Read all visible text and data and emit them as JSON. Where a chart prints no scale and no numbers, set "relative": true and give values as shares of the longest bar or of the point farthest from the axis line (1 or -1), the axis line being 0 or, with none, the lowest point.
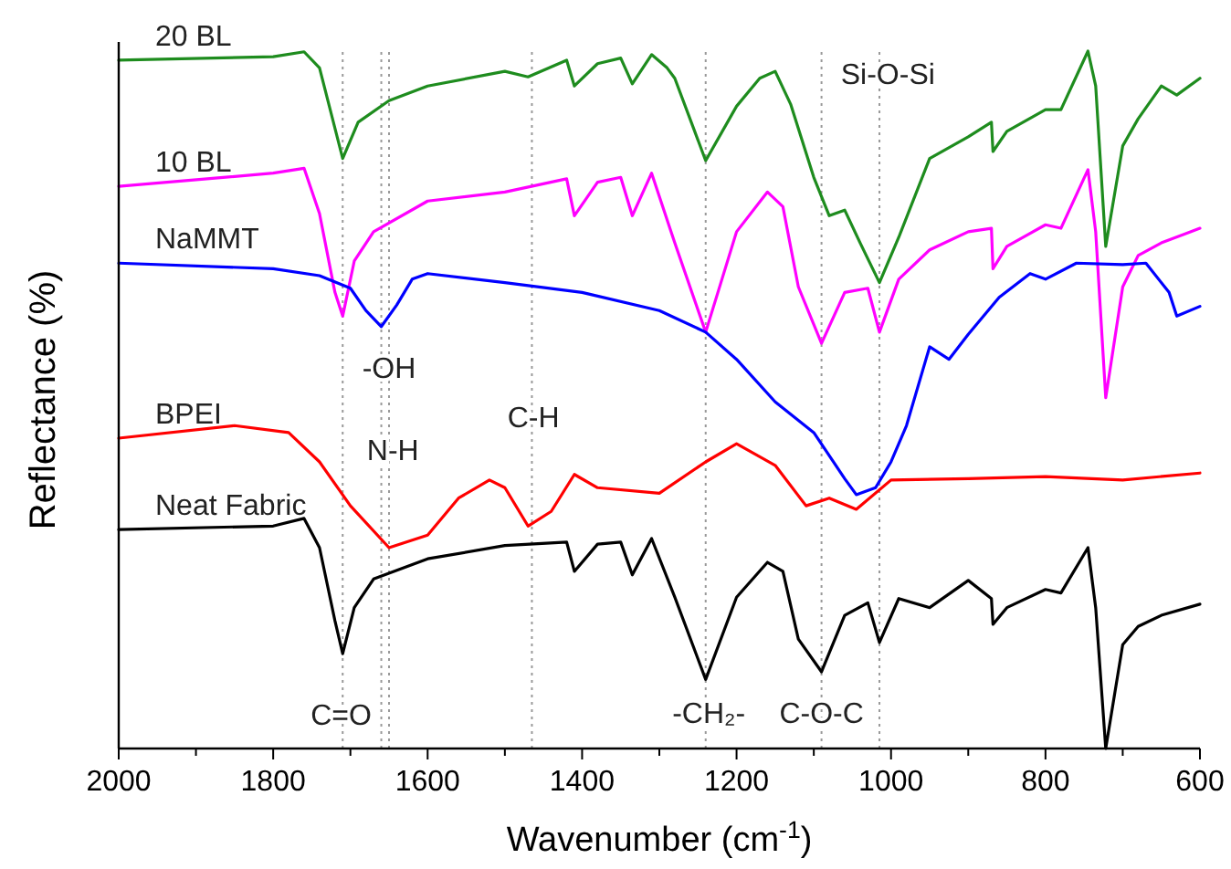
{
  "chart_data": {
    "type": "line",
    "xlabel": "Wavenumber (cm$^{-1}$)",
    "ylabel": "Reflectance (%)",
    "relative": true,
    "grid": false,
    "line_style": "solid",
    "marker": "none",
    "xlim": [
      2000,
      600
    ],
    "xticks": [
      2000,
      {
        "value": 1900,
        "label": null
      },
      1800,
      {
        "value": 1700,
        "label": null
      },
      1600,
      {
        "value": 1500,
        "label": null
      },
      1400,
      {
        "value": 1300,
        "label": null
      },
      1200,
      {
        "value": 1100,
        "label": null
      },
      1000,
      {
        "value": 900,
        "label": null
      },
      800,
      {
        "value": 700,
        "label": null
      },
      600
    ],
    "series": [
      {
        "name": "20 BL",
        "color": "#1e8c1e",
        "x": [
          2000,
          1800,
          1760,
          1740,
          1710,
          1690,
          1650,
          1600,
          1500,
          1470,
          1420,
          1410,
          1380,
          1350,
          1335,
          1310,
          1290,
          1280,
          1240,
          1200,
          1170,
          1150,
          1130,
          1100,
          1080,
          1060,
          1040,
          1015,
          990,
          950,
          900,
          870,
          868,
          850,
          800,
          780,
          745,
          735,
          722,
          700,
          680,
          650,
          630,
          600
        ],
        "values": [
          0.987,
          0.992,
          0.999,
          0.976,
          0.846,
          0.898,
          0.929,
          0.95,
          0.971,
          0.963,
          0.987,
          0.95,
          0.982,
          0.99,
          0.953,
          0.995,
          0.976,
          0.961,
          0.843,
          0.921,
          0.961,
          0.971,
          0.924,
          0.819,
          0.764,
          0.772,
          0.725,
          0.668,
          0.733,
          0.846,
          0.877,
          0.898,
          0.856,
          0.885,
          0.916,
          0.916,
          1.0,
          0.95,
          0.72,
          0.864,
          0.903,
          0.95,
          0.937,
          0.961
        ]
      },
      {
        "name": "10 BL",
        "color": "#ff00ff",
        "x": [
          2000,
          1800,
          1760,
          1740,
          1720,
          1710,
          1695,
          1670,
          1600,
          1500,
          1420,
          1410,
          1380,
          1350,
          1335,
          1310,
          1280,
          1240,
          1200,
          1160,
          1140,
          1120,
          1090,
          1060,
          1030,
          1015,
          990,
          950,
          900,
          870,
          868,
          850,
          800,
          780,
          745,
          735,
          722,
          700,
          680,
          650,
          600
        ],
        "values": [
          0.806,
          0.825,
          0.832,
          0.767,
          0.654,
          0.62,
          0.699,
          0.741,
          0.785,
          0.798,
          0.817,
          0.764,
          0.812,
          0.819,
          0.764,
          0.825,
          0.725,
          0.597,
          0.741,
          0.798,
          0.777,
          0.662,
          0.581,
          0.654,
          0.66,
          0.597,
          0.673,
          0.715,
          0.741,
          0.746,
          0.688,
          0.72,
          0.751,
          0.746,
          0.83,
          0.741,
          0.503,
          0.662,
          0.707,
          0.725,
          0.746
        ]
      },
      {
        "name": "NaMMT",
        "color": "#0000ff",
        "x": [
          2000,
          1800,
          1740,
          1700,
          1680,
          1660,
          1640,
          1620,
          1600,
          1500,
          1400,
          1300,
          1240,
          1200,
          1150,
          1100,
          1060,
          1045,
          1020,
          1000,
          980,
          950,
          925,
          900,
          860,
          820,
          800,
          760,
          700,
          670,
          640,
          630,
          600
        ],
        "values": [
          0.696,
          0.688,
          0.678,
          0.66,
          0.628,
          0.605,
          0.636,
          0.673,
          0.681,
          0.668,
          0.654,
          0.628,
          0.597,
          0.558,
          0.497,
          0.453,
          0.387,
          0.364,
          0.374,
          0.411,
          0.463,
          0.576,
          0.558,
          0.594,
          0.647,
          0.681,
          0.673,
          0.696,
          0.694,
          0.696,
          0.654,
          0.62,
          0.634
        ]
      },
      {
        "name": "BPEI",
        "color": "#ff0000",
        "x": [
          2000,
          1850,
          1780,
          1740,
          1700,
          1650,
          1600,
          1560,
          1520,
          1500,
          1470,
          1440,
          1410,
          1380,
          1300,
          1240,
          1200,
          1150,
          1110,
          1080,
          1045,
          1000,
          900,
          800,
          700,
          600
        ],
        "values": [
          0.445,
          0.463,
          0.453,
          0.411,
          0.348,
          0.288,
          0.306,
          0.359,
          0.385,
          0.374,
          0.319,
          0.34,
          0.393,
          0.374,
          0.366,
          0.411,
          0.437,
          0.406,
          0.348,
          0.359,
          0.343,
          0.385,
          0.387,
          0.39,
          0.385,
          0.395
        ]
      },
      {
        "name": "Neat Fabric",
        "color": "#000000",
        "x": [
          2000,
          1800,
          1760,
          1740,
          1720,
          1710,
          1695,
          1670,
          1600,
          1500,
          1420,
          1410,
          1380,
          1350,
          1335,
          1310,
          1280,
          1240,
          1200,
          1160,
          1140,
          1120,
          1090,
          1060,
          1030,
          1015,
          990,
          950,
          900,
          870,
          868,
          850,
          800,
          780,
          745,
          735,
          722,
          700,
          680,
          650,
          600
        ],
        "values": [
          0.314,
          0.319,
          0.33,
          0.288,
          0.183,
          0.136,
          0.202,
          0.243,
          0.272,
          0.291,
          0.296,
          0.254,
          0.293,
          0.296,
          0.249,
          0.301,
          0.217,
          0.099,
          0.217,
          0.267,
          0.254,
          0.157,
          0.11,
          0.191,
          0.209,
          0.152,
          0.215,
          0.202,
          0.241,
          0.215,
          0.178,
          0.202,
          0.228,
          0.223,
          0.288,
          0.202,
          0,
          0.149,
          0.175,
          0.191,
          0.207
        ]
      }
    ],
    "ref_lines": [
      {
        "axis": "x",
        "value": 1710,
        "color": "#999999",
        "line_style": "dotted"
      },
      {
        "axis": "x",
        "value": 1660,
        "color": "#999999",
        "line_style": "dotted"
      },
      {
        "axis": "x",
        "value": 1650,
        "color": "#999999",
        "line_style": "dotted"
      },
      {
        "axis": "x",
        "value": 1465,
        "color": "#999999",
        "line_style": "dotted"
      },
      {
        "axis": "x",
        "value": 1240,
        "color": "#999999",
        "line_style": "dotted"
      },
      {
        "axis": "x",
        "value": 1090,
        "color": "#999999",
        "line_style": "dotted"
      },
      {
        "axis": "x",
        "value": 1015,
        "color": "#999999",
        "line_style": "dotted"
      }
    ],
    "annotations": [
      {
        "text": "C=O",
        "x": 1712,
        "y": 0.045
      },
      {
        "text": "-OH",
        "x": 1650,
        "y": 0.542
      },
      {
        "text": "N-H",
        "x": 1645,
        "y": 0.424
      },
      {
        "text": "C-H",
        "x": 1463,
        "y": 0.471
      },
      {
        "text": "-CH₂-",
        "x": 1236,
        "y": 0.047
      },
      {
        "text": "C-O-C",
        "x": 1090,
        "y": 0.047
      },
      {
        "text": "Si-O-Si",
        "x": 1004,
        "y": 0.963
      }
    ]
  }
}
